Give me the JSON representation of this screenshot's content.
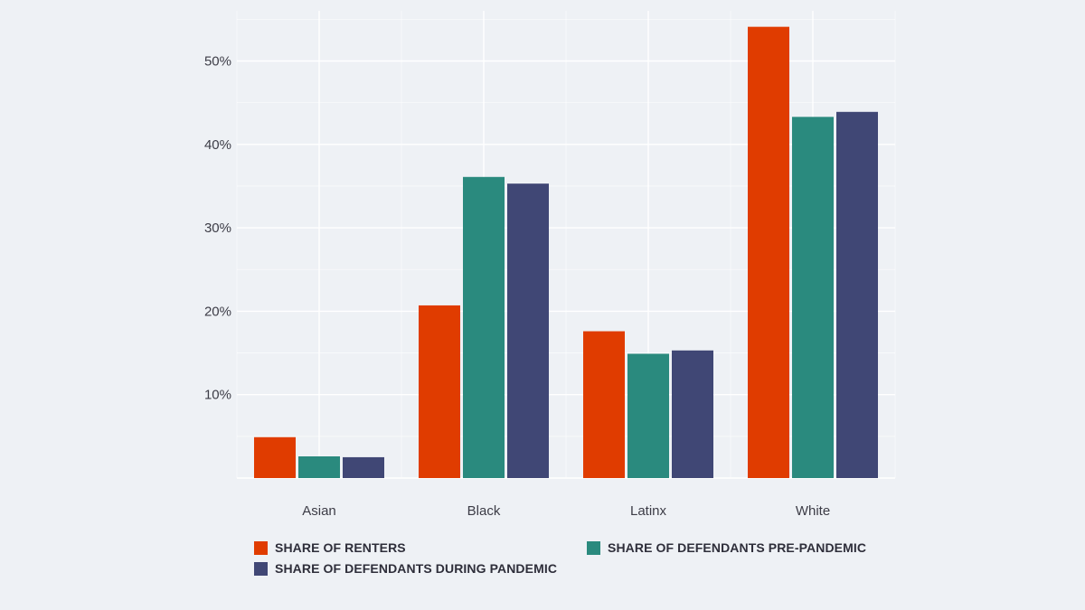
{
  "chart_data": {
    "type": "bar",
    "categories": [
      "Asian",
      "Black",
      "Latinx",
      "White"
    ],
    "series": [
      {
        "name": "SHARE OF RENTERS",
        "color": "#e03c00",
        "values": [
          4.9,
          20.7,
          17.6,
          54.1
        ]
      },
      {
        "name": "SHARE OF DEFENDANTS PRE-PANDEMIC",
        "color": "#2a8a7e",
        "values": [
          2.6,
          36.1,
          14.9,
          43.3
        ]
      },
      {
        "name": "SHARE OF DEFENDANTS DURING PANDEMIC",
        "color": "#404775",
        "values": [
          2.5,
          35.3,
          15.3,
          43.9
        ]
      }
    ],
    "y_ticks": [
      {
        "value": 10,
        "label": "10%"
      },
      {
        "value": 20,
        "label": "20%"
      },
      {
        "value": 30,
        "label": "30%"
      },
      {
        "value": 40,
        "label": "40%"
      },
      {
        "value": 50,
        "label": "50%"
      }
    ],
    "ylim": [
      0,
      56
    ],
    "grid": true,
    "legend_position": "bottom",
    "title": "",
    "xlabel": "",
    "ylabel": ""
  }
}
